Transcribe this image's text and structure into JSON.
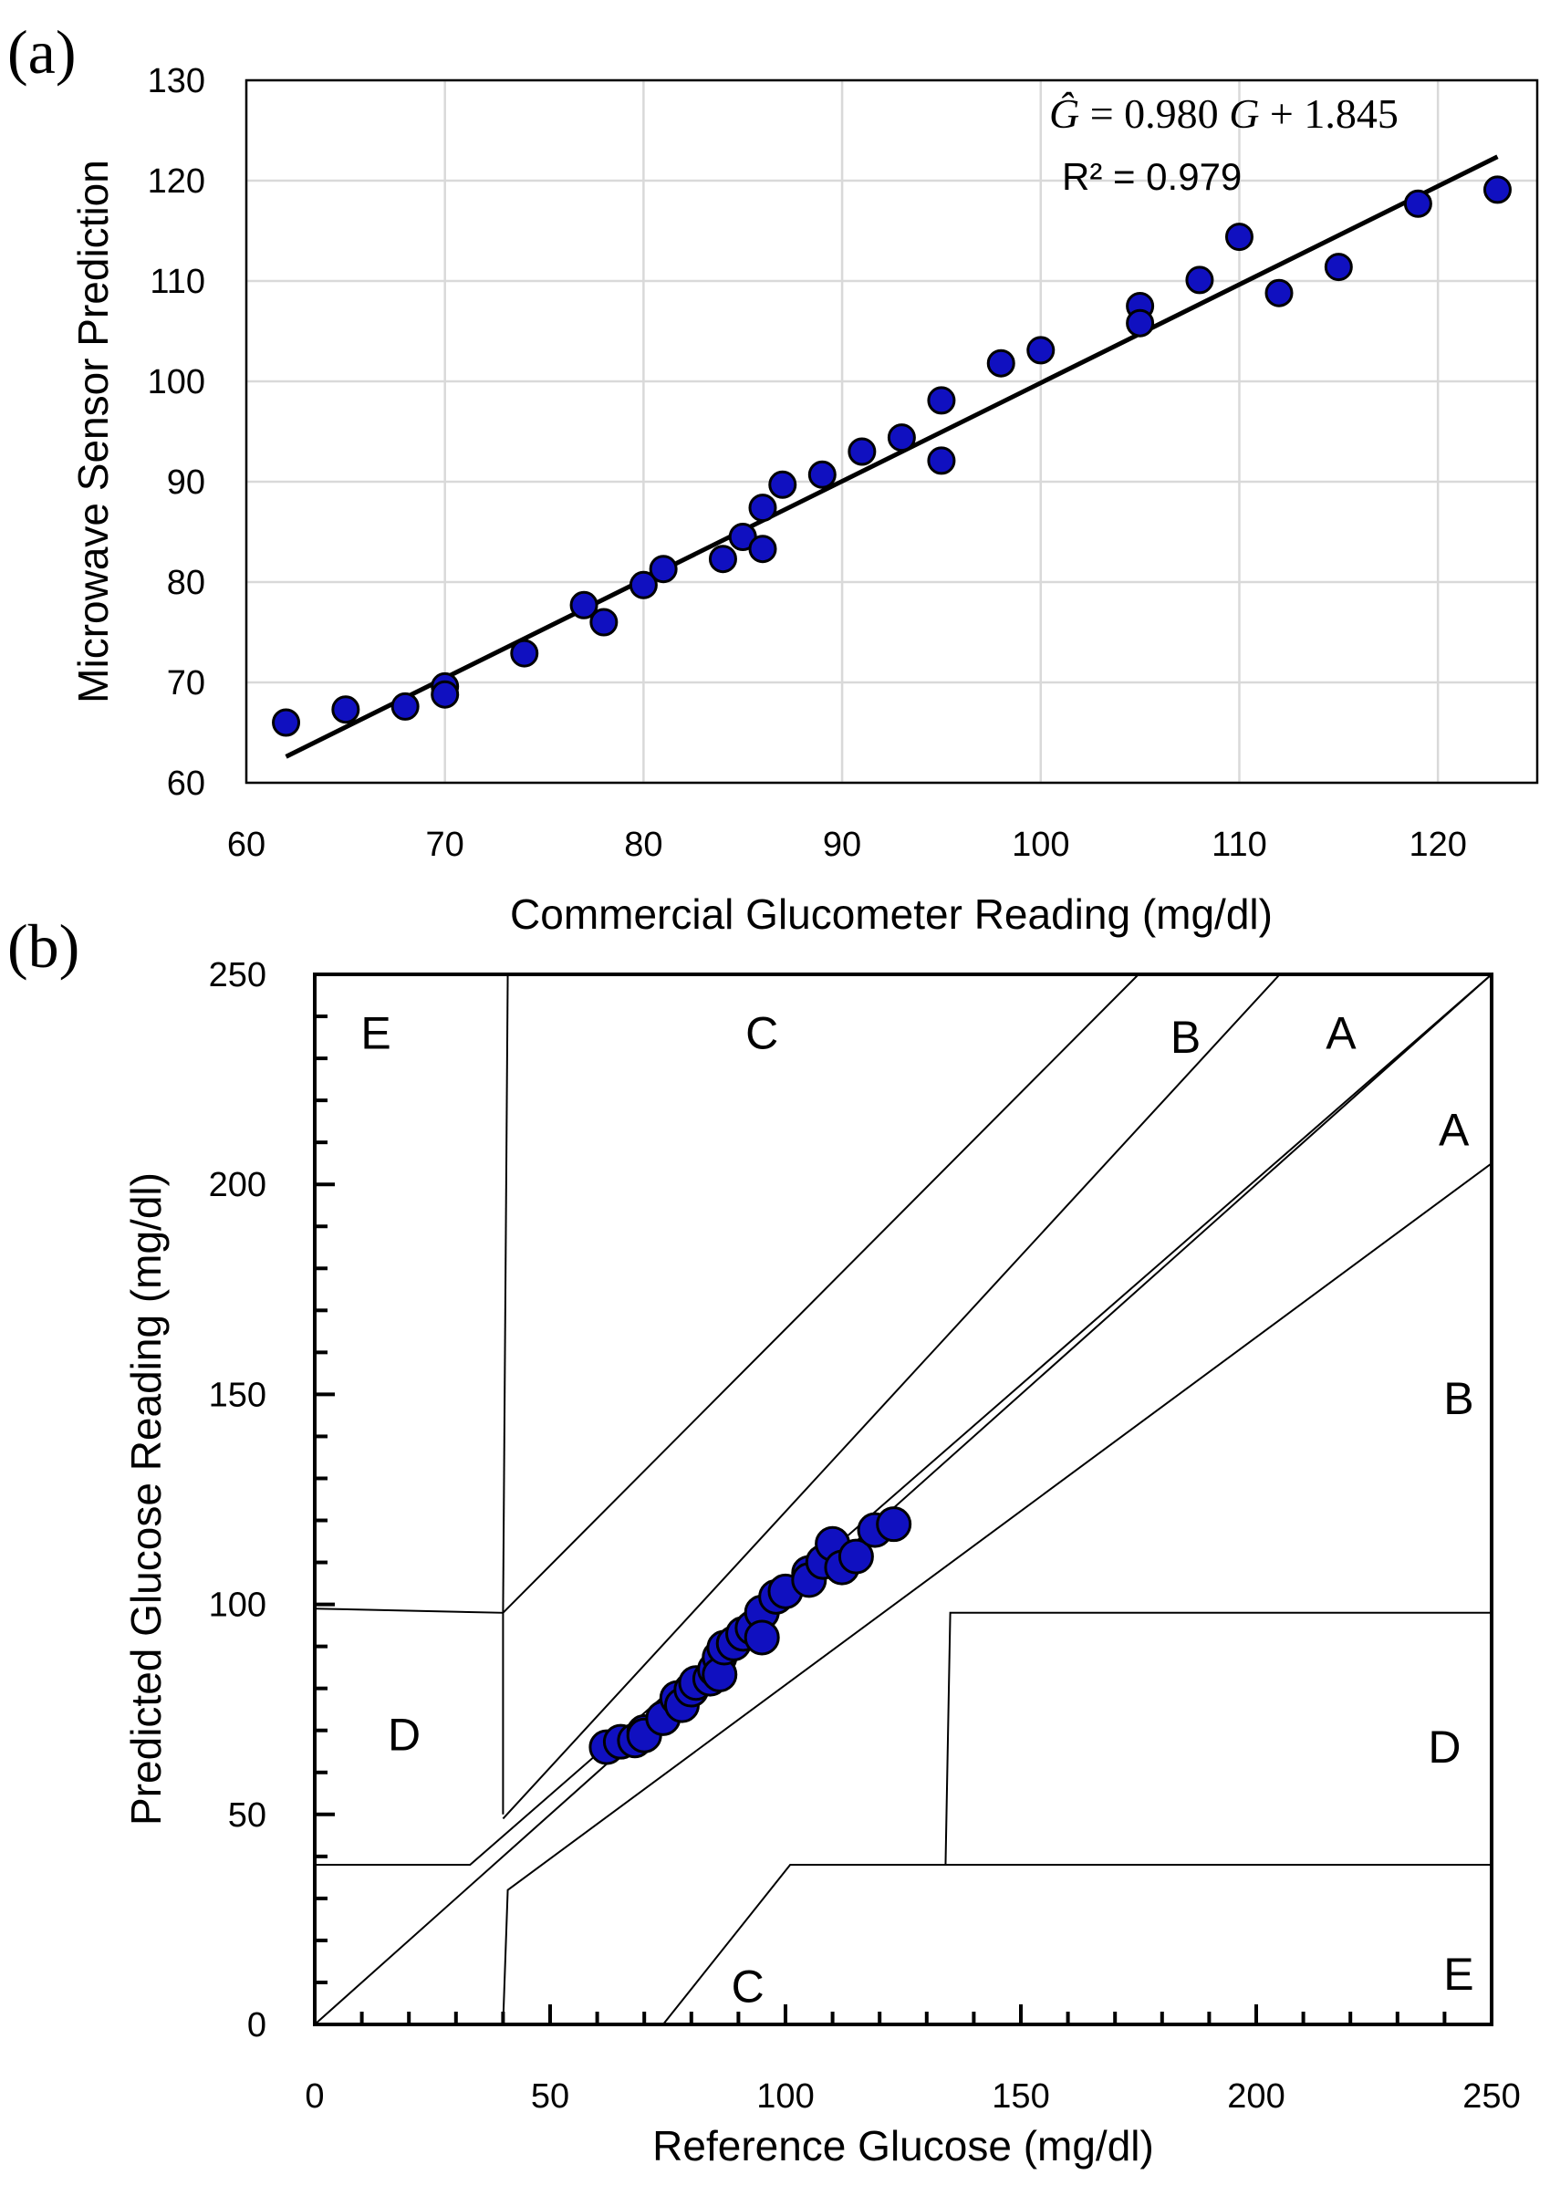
{
  "chart_data": [
    {
      "panel_label": "(a)",
      "type": "scatter",
      "xlabel": "Commercial Glucometer Reading (mg/dl)",
      "ylabel": "Microwave Sensor Prediction",
      "xlim": [
        60,
        125
      ],
      "ylim": [
        60,
        130
      ],
      "xticks": [
        "60",
        "70",
        "80",
        "90",
        "100",
        "110",
        "120"
      ],
      "yticks": [
        "60",
        "70",
        "80",
        "90",
        "100",
        "110",
        "120",
        "130"
      ],
      "grid": true,
      "points": [
        [
          62,
          66
        ],
        [
          65,
          67.3
        ],
        [
          68,
          67.6
        ],
        [
          70,
          69.6
        ],
        [
          70,
          68.8
        ],
        [
          74,
          72.9
        ],
        [
          77,
          77.7
        ],
        [
          78,
          76.0
        ],
        [
          80,
          79.7
        ],
        [
          81,
          81.3
        ],
        [
          84,
          82.3
        ],
        [
          85,
          84.5
        ],
        [
          86,
          87.4
        ],
        [
          86,
          83.3
        ],
        [
          87,
          89.7
        ],
        [
          89,
          90.7
        ],
        [
          91,
          93.0
        ],
        [
          93,
          94.4
        ],
        [
          95,
          98.1
        ],
        [
          95,
          92.1
        ],
        [
          98,
          101.8
        ],
        [
          100,
          103.1
        ],
        [
          105,
          107.5
        ],
        [
          105,
          105.8
        ],
        [
          108,
          110.1
        ],
        [
          110,
          114.4
        ],
        [
          112,
          108.8
        ],
        [
          115,
          111.4
        ],
        [
          119,
          117.7
        ],
        [
          123,
          119.1
        ]
      ],
      "fit": {
        "slope": 0.98,
        "intercept": 1.845,
        "x_range": [
          62,
          123
        ],
        "equation": "Ĝ = 0.980 G + 1.845",
        "equation_parts": {
          "lhs": "Ĝ",
          "eq": " = 0.980 ",
          "var": "G",
          "rest": " + 1.845"
        },
        "r2": "R² = 0.979"
      },
      "marker_color": "#1010c0"
    },
    {
      "panel_label": "(b)",
      "type": "scatter",
      "xlabel": "Reference Glucose (mg/dl)",
      "ylabel": "Predicted Glucose Reading (mg/dl)",
      "xlim": [
        0,
        250
      ],
      "ylim": [
        0,
        250
      ],
      "xticks": [
        "0",
        "50",
        "100",
        "150",
        "200",
        "250"
      ],
      "yticks": [
        "0",
        "50",
        "100",
        "150",
        "200",
        "250"
      ],
      "grid": false,
      "zone_lines": [
        [
          [
            0,
            0
          ],
          [
            250,
            250
          ]
        ],
        [
          [
            0,
            99
          ],
          [
            40,
            98
          ],
          [
            40,
            50
          ]
        ],
        [
          [
            40,
            98
          ],
          [
            175,
            250
          ]
        ],
        [
          [
            40,
            49
          ],
          [
            205,
            250
          ]
        ],
        [
          [
            40,
            0
          ],
          [
            41,
            32
          ],
          [
            250,
            205
          ]
        ],
        [
          [
            0,
            38
          ],
          [
            33,
            38
          ],
          [
            250,
            250
          ]
        ],
        [
          [
            40,
            98
          ],
          [
            41,
            250
          ]
        ],
        [
          [
            74,
            0
          ],
          [
            101,
            38
          ],
          [
            250,
            38
          ]
        ],
        [
          [
            134,
            38
          ],
          [
            135,
            98
          ],
          [
            250,
            98
          ]
        ]
      ],
      "zone_labels": [
        {
          "text": "E",
          "x": 13,
          "y": 236
        },
        {
          "text": "C",
          "x": 95,
          "y": 236
        },
        {
          "text": "B",
          "x": 185,
          "y": 235
        },
        {
          "text": "A",
          "x": 218,
          "y": 236
        },
        {
          "text": "A",
          "x": 242,
          "y": 213
        },
        {
          "text": "B",
          "x": 243,
          "y": 149
        },
        {
          "text": "D",
          "x": 19,
          "y": 69
        },
        {
          "text": "D",
          "x": 240,
          "y": 66
        },
        {
          "text": "E",
          "x": 243,
          "y": 12
        },
        {
          "text": "C",
          "x": 92,
          "y": 9
        }
      ],
      "points": [
        [
          62,
          66
        ],
        [
          65,
          67.3
        ],
        [
          68,
          67.6
        ],
        [
          70,
          69.6
        ],
        [
          70,
          68.8
        ],
        [
          74,
          72.9
        ],
        [
          77,
          77.7
        ],
        [
          78,
          76.0
        ],
        [
          80,
          79.7
        ],
        [
          81,
          81.3
        ],
        [
          84,
          82.3
        ],
        [
          85,
          84.5
        ],
        [
          86,
          87.4
        ],
        [
          86,
          83.3
        ],
        [
          87,
          89.7
        ],
        [
          89,
          90.7
        ],
        [
          91,
          93.0
        ],
        [
          93,
          94.4
        ],
        [
          95,
          98.1
        ],
        [
          95,
          92.1
        ],
        [
          98,
          101.8
        ],
        [
          100,
          103.1
        ],
        [
          105,
          107.5
        ],
        [
          105,
          105.8
        ],
        [
          108,
          110.1
        ],
        [
          110,
          114.4
        ],
        [
          112,
          108.8
        ],
        [
          115,
          111.4
        ],
        [
          119,
          117.7
        ],
        [
          123,
          119.1
        ]
      ],
      "marker_color": "#1010c0"
    }
  ]
}
